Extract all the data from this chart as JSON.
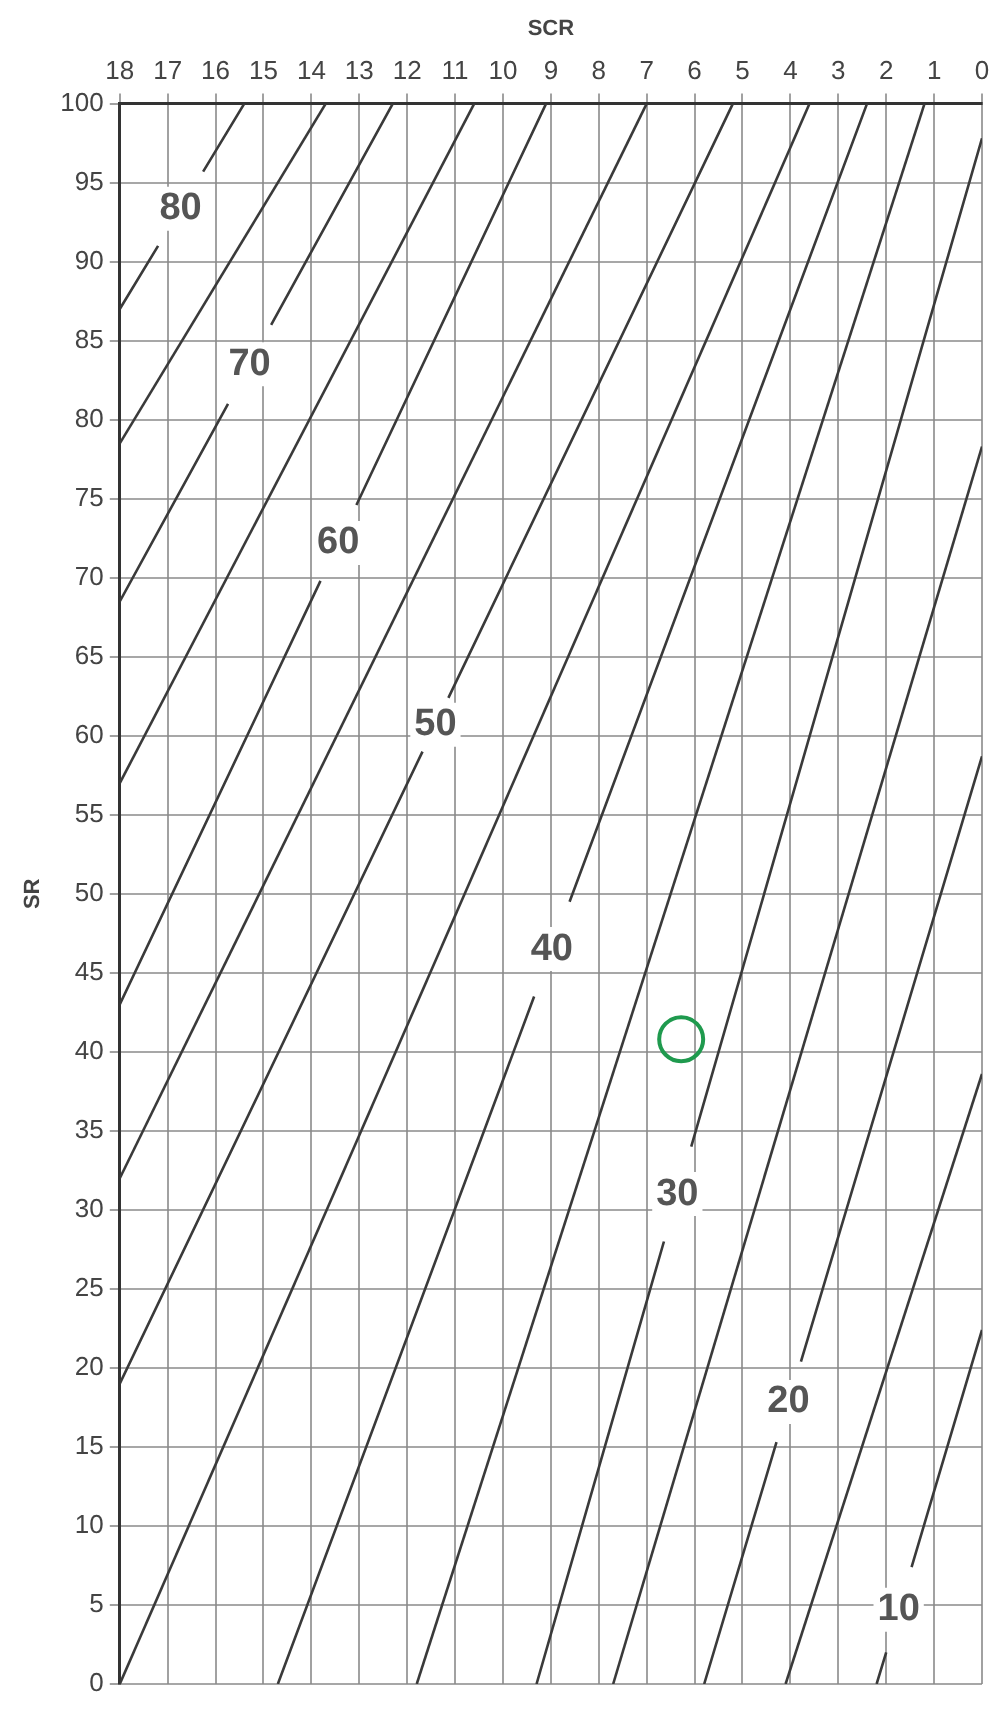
{
  "chart_data": {
    "type": "line",
    "xlabel": "SCR",
    "ylabel": "SR",
    "xlim": [
      18,
      0
    ],
    "xticks": [
      18,
      17,
      16,
      15,
      14,
      13,
      12,
      11,
      10,
      9,
      8,
      7,
      6,
      5,
      4,
      3,
      2,
      1,
      0
    ],
    "ylim": [
      0,
      100
    ],
    "yticks": [
      0,
      5,
      10,
      15,
      20,
      25,
      30,
      35,
      40,
      45,
      50,
      55,
      60,
      65,
      70,
      75,
      80,
      85,
      90,
      95,
      100
    ],
    "grid": true,
    "legend": false,
    "marker": "none",
    "line_style": "solid",
    "series": [
      {
        "name": "80",
        "color": "#3a3a3a",
        "x": [
          18,
          17.2,
          16.73,
          16.26,
          15.4
        ],
        "values": [
          87,
          91,
          null,
          95.7,
          100
        ]
      },
      {
        "color": "#3a3a3a",
        "x": [
          18,
          13.7
        ],
        "values": [
          78.5,
          100
        ]
      },
      {
        "name": "70",
        "color": "#3a3a3a",
        "x": [
          18,
          15.74,
          15.29,
          14.84,
          12.3
        ],
        "values": [
          68.5,
          81,
          null,
          86,
          100
        ]
      },
      {
        "color": "#3a3a3a",
        "x": [
          18,
          10.6
        ],
        "values": [
          57,
          100
        ]
      },
      {
        "name": "60",
        "color": "#3a3a3a",
        "x": [
          18,
          13.81,
          13.44,
          13.06,
          9.1
        ],
        "values": [
          43,
          69.8,
          null,
          74.6,
          100
        ]
      },
      {
        "color": "#3a3a3a",
        "x": [
          18,
          7.0
        ],
        "values": [
          32,
          100
        ]
      },
      {
        "name": "50",
        "color": "#3a3a3a",
        "x": [
          18,
          11.68,
          11.41,
          11.14,
          5.2
        ],
        "values": [
          19,
          59,
          null,
          62.4,
          100
        ]
      },
      {
        "color": "#3a3a3a",
        "x": [
          18,
          3.6
        ],
        "values": [
          0,
          100
        ]
      },
      {
        "name": "40",
        "color": "#3a3a3a",
        "x": [
          14.7,
          9.35,
          8.98,
          8.61,
          2.4
        ],
        "values": [
          0,
          43.5,
          null,
          49.5,
          100
        ]
      },
      {
        "color": "#3a3a3a",
        "x": [
          11.8,
          1.2
        ],
        "values": [
          0,
          100
        ]
      },
      {
        "name": "30",
        "color": "#3a3a3a",
        "x": [
          9.3,
          6.64,
          6.36,
          6.07,
          0
        ],
        "values": [
          0,
          28,
          null,
          34,
          97.8
        ]
      },
      {
        "color": "#3a3a3a",
        "x": [
          7.7,
          0
        ],
        "values": [
          0,
          78.3
        ]
      },
      {
        "name": "20",
        "color": "#3a3a3a",
        "x": [
          5.8,
          4.29,
          4.04,
          3.78,
          0
        ],
        "values": [
          0,
          15.3,
          null,
          20.4,
          58.7
        ]
      },
      {
        "color": "#3a3a3a",
        "x": [
          4.1,
          0
        ],
        "values": [
          0,
          38.6
        ]
      },
      {
        "name": "10",
        "color": "#3a3a3a",
        "x": [
          2.2,
          2.0,
          1.74,
          1.47,
          0
        ],
        "values": [
          0,
          2,
          null,
          7.4,
          22.4
        ]
      },
      {
        "type": "scatter",
        "marker": "circle",
        "color": "#1f9a4e",
        "x": [
          6.28
        ],
        "values": [
          40.8
        ]
      }
    ]
  }
}
